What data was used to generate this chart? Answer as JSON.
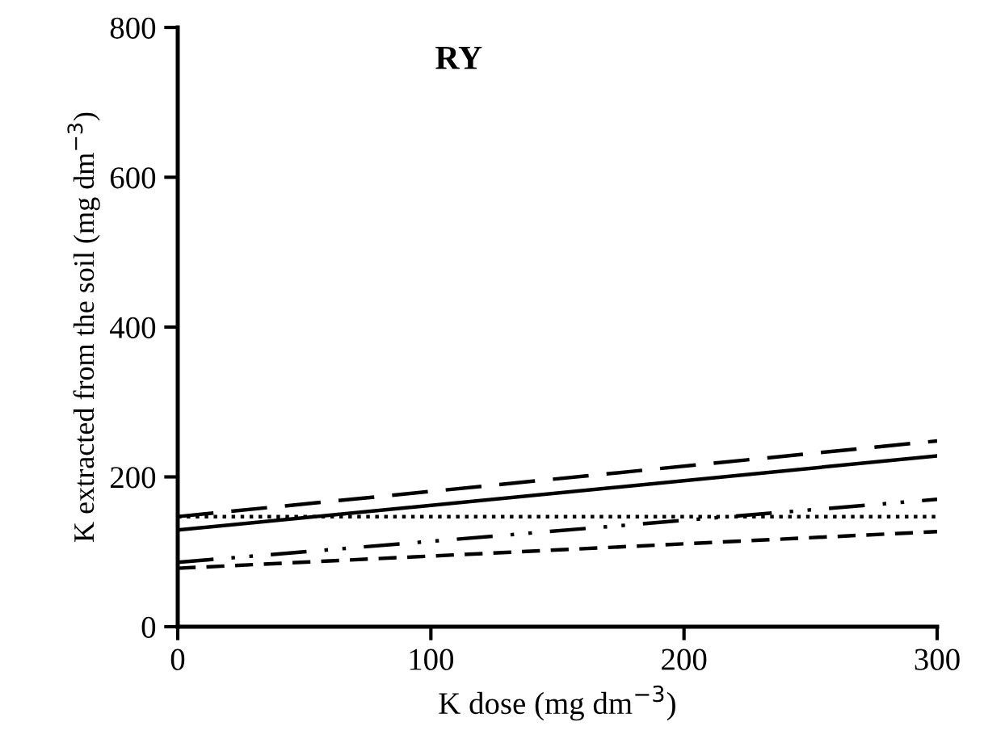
{
  "chart_data": {
    "type": "line",
    "title": "RY",
    "xlabel": "K dose (mg dm$^{−3}$)",
    "ylabel": "K extracted from the soil (mg dm$^{−3}$)",
    "x": [
      0,
      300
    ],
    "series": [
      {
        "color": "#000000",
        "line_style": "longdashed",
        "values": [
          147,
          248
        ]
      },
      {
        "color": "#000000",
        "line_style": "solid",
        "values": [
          129,
          228
        ]
      },
      {
        "color": "#000000",
        "line_style": "dotted",
        "values": [
          147,
          147
        ]
      },
      {
        "color": "#000000",
        "line_style": "dashdotdot",
        "values": [
          86,
          170
        ]
      },
      {
        "color": "#000000",
        "line_style": "dashed",
        "values": [
          78,
          127
        ]
      }
    ],
    "xlim": [
      0,
      300
    ],
    "xticks": [
      0,
      100,
      200,
      300
    ],
    "ylim": [
      0,
      800
    ],
    "yticks": [
      0,
      200,
      400,
      600,
      800
    ],
    "grid": false,
    "marker": "none"
  }
}
